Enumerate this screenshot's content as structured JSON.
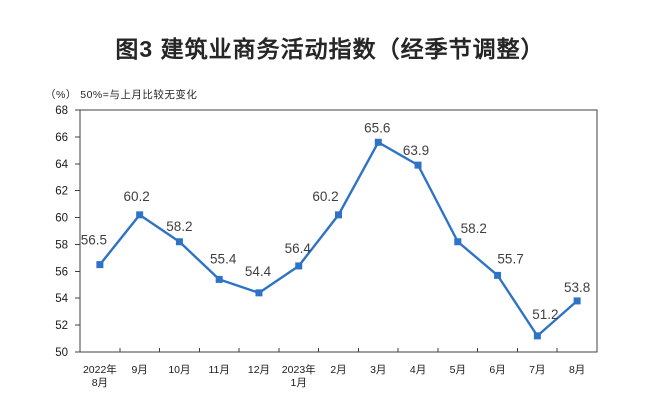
{
  "page": {
    "title": "图3  建筑业商务活动指数（经季节调整）",
    "subtitle": "（%） 50%=与上月比较无变化"
  },
  "chart_data": {
    "type": "line",
    "title": "图3  建筑业商务活动指数（经季节调整）",
    "unit_note": "（%） 50%=与上月比较无变化",
    "categories": [
      "2022年\n8月",
      "9月",
      "10月",
      "11月",
      "12月",
      "2023年\n1月",
      "2月",
      "3月",
      "4月",
      "5月",
      "6月",
      "7月",
      "8月"
    ],
    "values": [
      56.5,
      60.2,
      58.2,
      55.4,
      54.4,
      56.4,
      60.2,
      65.6,
      63.9,
      58.2,
      55.7,
      51.2,
      53.8
    ],
    "series_name": "建筑业商务活动指数",
    "ylim": [
      50,
      68
    ],
    "ytick_step": 2,
    "yticks": [
      50,
      52,
      54,
      56,
      58,
      60,
      62,
      64,
      66,
      68
    ],
    "grid": false,
    "legend_position": "none",
    "line_color": "#2E73C5",
    "marker": "square",
    "label_color": "#3f3f3f",
    "axis_color": "#404040",
    "tick_label_color": "#1a1a1a"
  }
}
